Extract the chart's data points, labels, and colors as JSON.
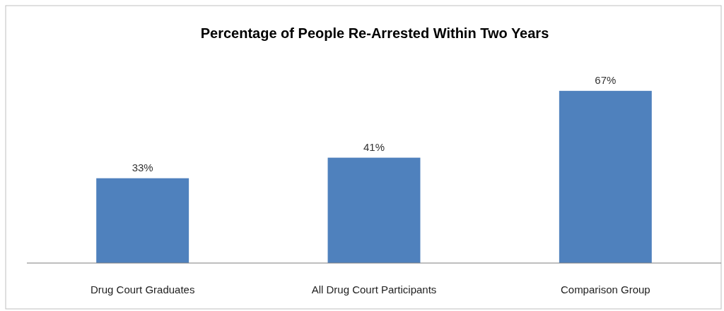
{
  "chart_data": {
    "type": "bar",
    "title": "Percentage of People Re-Arrested Within Two Years",
    "categories": [
      "Drug Court Graduates",
      "All Drug Court Participants",
      "Comparison Group"
    ],
    "values": [
      33,
      41,
      67
    ],
    "value_labels": [
      "33%",
      "41%",
      "67%"
    ],
    "color": "#4f81bd"
  }
}
